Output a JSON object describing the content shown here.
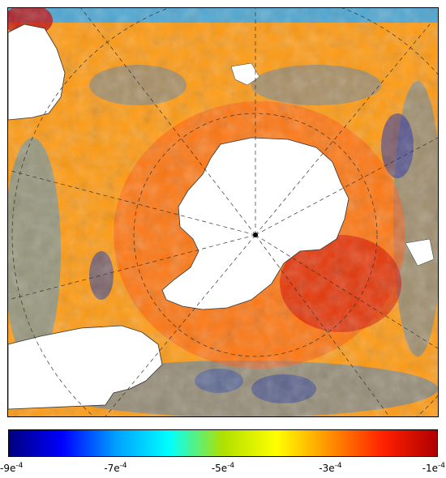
{
  "map": {
    "projection": "south-polar-stereographic",
    "background_land_color": "#ffffff",
    "coastline_color": "#333333",
    "graticule_style": "dashed"
  },
  "colorbar": {
    "colormap": "jet",
    "colors": [
      "#00007f",
      "#0000ff",
      "#00a0ff",
      "#00ffff",
      "#b0e000",
      "#ffff00",
      "#ff9000",
      "#ff2000",
      "#b00000"
    ],
    "min": -0.0009,
    "max": -0.0001,
    "ticks": [
      {
        "mantissa": "-9e",
        "exponent": "-4"
      },
      {
        "mantissa": "-7e",
        "exponent": "-4"
      },
      {
        "mantissa": "-5e",
        "exponent": "-4"
      },
      {
        "mantissa": "-3e",
        "exponent": "-4"
      },
      {
        "mantissa": "-1e",
        "exponent": "-4"
      }
    ]
  }
}
